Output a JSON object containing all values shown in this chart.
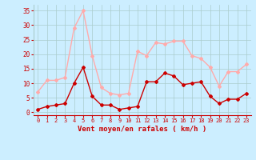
{
  "x": [
    0,
    1,
    2,
    3,
    4,
    5,
    6,
    7,
    8,
    9,
    10,
    11,
    12,
    13,
    14,
    15,
    16,
    17,
    18,
    19,
    20,
    21,
    22,
    23
  ],
  "wind_avg": [
    1,
    2,
    2.5,
    3,
    10,
    15.5,
    5.5,
    2.5,
    2.5,
    1,
    1.5,
    2,
    10.5,
    10.5,
    13.5,
    12.5,
    9.5,
    10,
    10.5,
    5.5,
    3,
    4.5,
    4.5,
    6.5
  ],
  "wind_gust": [
    7,
    11,
    11,
    12,
    29,
    35,
    19.5,
    8.5,
    6.5,
    6,
    6.5,
    21,
    19.5,
    24,
    23.5,
    24.5,
    24.5,
    19.5,
    18.5,
    15.5,
    9,
    14,
    14,
    16.5
  ],
  "avg_color": "#cc0000",
  "gust_color": "#ffaaaa",
  "bg_color": "#cceeff",
  "grid_color": "#aacccc",
  "xlabel": "Vent moyen/en rafales ( km/h )",
  "xlabel_color": "#cc0000",
  "tick_color": "#cc0000",
  "ylim": [
    -1,
    37
  ],
  "yticks": [
    0,
    5,
    10,
    15,
    20,
    25,
    30,
    35
  ],
  "xlim": [
    -0.5,
    23.5
  ]
}
